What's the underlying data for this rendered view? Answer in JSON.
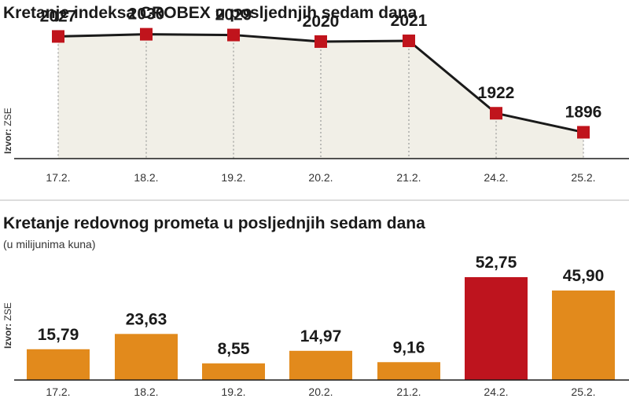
{
  "source": {
    "label": "Izvor:",
    "value": "ZSE"
  },
  "chart_data": [
    {
      "type": "line",
      "title": "Kretanje indeksa CROBEX u posljednjih sedam dana",
      "subtitle": "",
      "categories": [
        "17.2.",
        "18.2.",
        "19.2.",
        "20.2.",
        "21.2.",
        "24.2.",
        "25.2."
      ],
      "values": [
        2027,
        2030,
        2029,
        2020,
        2021,
        1922,
        1896
      ],
      "labels": [
        "2027",
        "2030",
        "2029",
        "2020",
        "2021",
        "1922",
        "1896"
      ],
      "ylim": [
        1860,
        2050
      ],
      "colors": {
        "line": "#1a1a1a",
        "marker": "#c0141c",
        "area": "#f1efe7",
        "guide": "#888888"
      },
      "grid": false
    },
    {
      "type": "bar",
      "title": "Kretanje redovnog prometa u posljednjih sedam dana",
      "subtitle": "(u milijunima kuna)",
      "categories": [
        "17.2.",
        "18.2.",
        "19.2.",
        "20.2.",
        "21.2.",
        "24.2.",
        "25.2."
      ],
      "values": [
        15.79,
        23.63,
        8.55,
        14.97,
        9.16,
        52.75,
        45.9
      ],
      "labels": [
        "15,79",
        "23,63",
        "8,55",
        "14,97",
        "9,16",
        "52,75",
        "45,90"
      ],
      "ylim": [
        0,
        60
      ],
      "colors": {
        "bar": "#e28a1c",
        "highlight": "#be141e"
      },
      "highlight_index": 5,
      "grid": false
    }
  ]
}
